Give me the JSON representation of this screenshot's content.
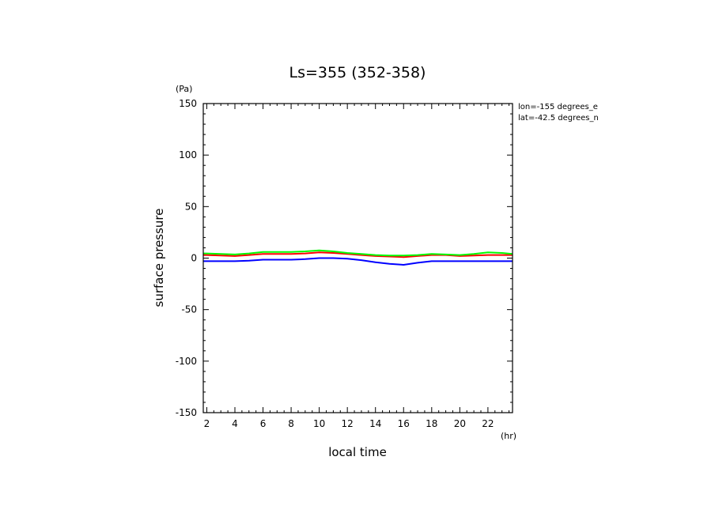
{
  "chart_data": {
    "type": "line",
    "title": "Ls=355 (352-358)",
    "xlabel": "local time",
    "ylabel": "surface pressure",
    "x_unit": "(hr)",
    "y_unit": "(Pa)",
    "xlim": [
      1.75,
      23.75
    ],
    "ylim": [
      -150,
      150
    ],
    "x_ticks": [
      2,
      4,
      6,
      8,
      10,
      12,
      14,
      16,
      18,
      20,
      22
    ],
    "y_ticks": [
      -150,
      -100,
      -50,
      0,
      50,
      100,
      150
    ],
    "grid": false,
    "annotations": [
      "lon=-155 degrees_e",
      "lat=-42.5 degrees_n"
    ],
    "x": [
      1.75,
      2,
      3,
      4,
      5,
      6,
      7,
      8,
      9,
      10,
      11,
      12,
      13,
      14,
      15,
      16,
      17,
      18,
      19,
      20,
      21,
      22,
      23,
      23.75
    ],
    "series": [
      {
        "color": "#0000ff",
        "values": [
          -3,
          -3,
          -3,
          -3,
          -2.5,
          -1.5,
          -1.5,
          -1.5,
          -1,
          0,
          0,
          -0.5,
          -2,
          -4,
          -5.5,
          -6.5,
          -4.5,
          -3,
          -3,
          -3,
          -3,
          -3,
          -3,
          -3
        ]
      },
      {
        "color": "#ff0000",
        "values": [
          3,
          3,
          2.5,
          2,
          3,
          4,
          4,
          4,
          4.5,
          5.5,
          5,
          4,
          3,
          2,
          1.5,
          1,
          2,
          3,
          3,
          2,
          2.5,
          3,
          3,
          3
        ]
      },
      {
        "color": "#00ff00",
        "values": [
          4.5,
          4.5,
          4,
          3.5,
          4.5,
          6,
          6,
          6,
          6.5,
          7.5,
          6.5,
          5,
          4,
          3,
          2.5,
          2.5,
          3,
          4,
          3.5,
          3,
          4,
          5.5,
          5,
          4
        ]
      }
    ]
  }
}
